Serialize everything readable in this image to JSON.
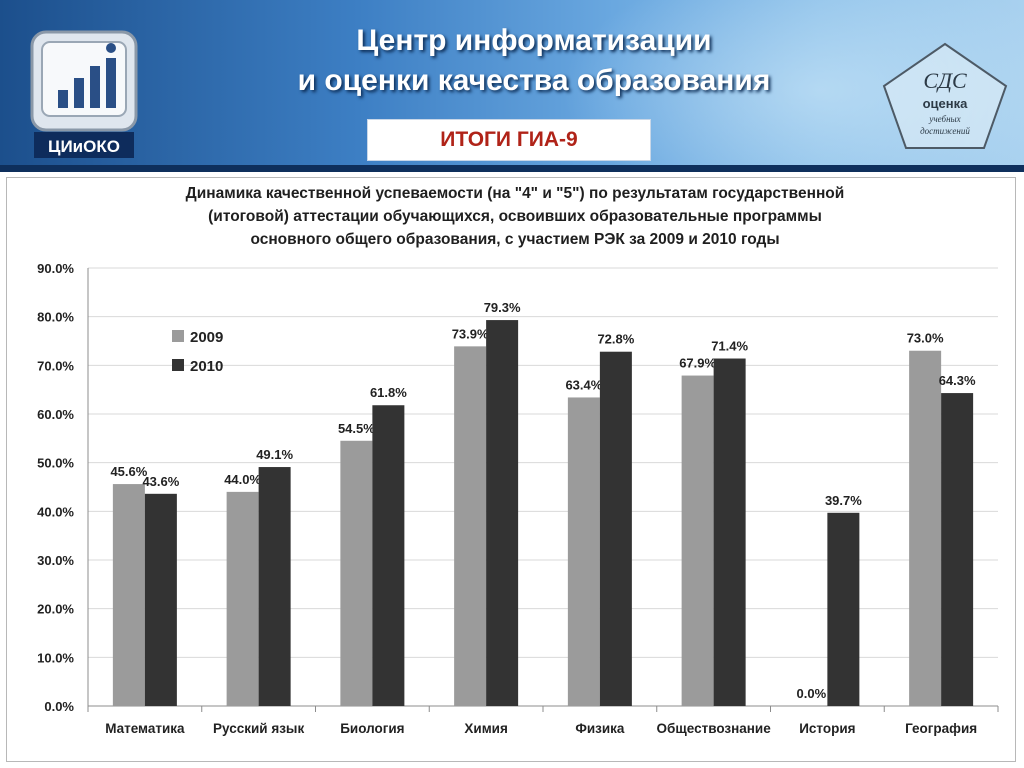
{
  "header": {
    "title_line1": "Центр информатизации",
    "title_line2": "и оценки качества образования",
    "badge": "ИТОГИ ГИА-9",
    "logo_text": "ЦИиОКО",
    "stamp_lines": [
      "СДС",
      "оценка",
      "учебных",
      "достижений"
    ]
  },
  "colors": {
    "series_2009": "#9b9b9b",
    "series_2010": "#333333",
    "badge_text": "#b02318"
  },
  "chart_data": {
    "type": "bar",
    "title_lines": [
      "Динамика качественной успеваемости (на \"4\" и \"5\") по результатам государственной",
      "(итоговой) аттестации обучающихся, освоивших образовательные программы",
      "основного общего образования, с участием РЭК за 2009 и 2010 годы"
    ],
    "categories": [
      "Математика",
      "Русский язык",
      "Биология",
      "Химия",
      "Физика",
      "Обществознание",
      "История",
      "География"
    ],
    "series": [
      {
        "name": "2009",
        "values": [
          45.6,
          44.0,
          54.5,
          73.9,
          63.4,
          67.9,
          0.0,
          73.0
        ],
        "labels": [
          "45.6%",
          "44.0%",
          "54.5%",
          "73.9%",
          "63.4%",
          "67.9%",
          "0.0%",
          "73.0%"
        ]
      },
      {
        "name": "2010",
        "values": [
          43.6,
          49.1,
          61.8,
          79.3,
          72.8,
          71.4,
          39.7,
          64.3
        ],
        "labels": [
          "43.6%",
          "49.1%",
          "61.8%",
          "79.3%",
          "72.8%",
          "71.4%",
          "39.7%",
          "64.3%"
        ]
      }
    ],
    "ylim": [
      0,
      90
    ],
    "yticks": [
      "0.0%",
      "10.0%",
      "20.0%",
      "30.0%",
      "40.0%",
      "50.0%",
      "60.0%",
      "70.0%",
      "80.0%",
      "90.0%"
    ],
    "legend_position": "top-left",
    "grid": true
  }
}
